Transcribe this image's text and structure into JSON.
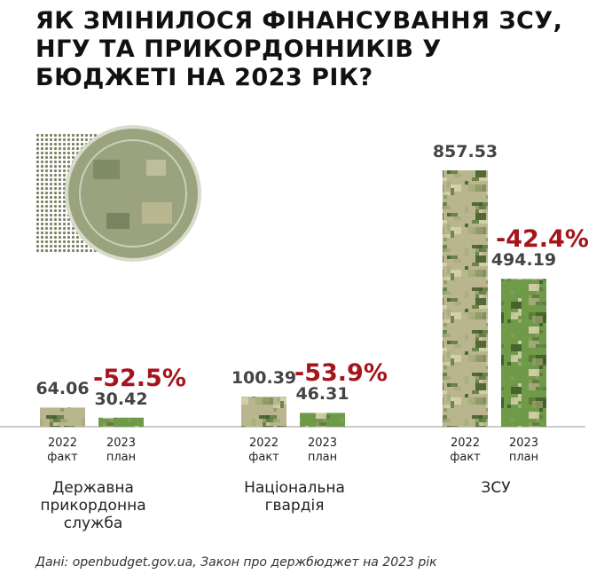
{
  "title": "Як змінилося фінансування ЗСУ, НГУ та прикордонників у бюджеті на 2023 рік?",
  "source": "Дані: openbudget.gov.ua, Закон про держбюджет на 2023 рік",
  "chart_data": {
    "type": "bar",
    "categories": [
      "Державна прикордонна служба",
      "Національна гвардія",
      "ЗСУ"
    ],
    "series": [
      {
        "name": "2022 факт",
        "color": "#b9b58e",
        "values": [
          64.06,
          100.39,
          857.53
        ]
      },
      {
        "name": "2023 план",
        "color": "#6f9a48",
        "values": [
          30.42,
          46.31,
          494.19
        ]
      }
    ],
    "annotations": [
      "-52.5%",
      "-53.9%",
      "-42.4%"
    ]
  }
}
